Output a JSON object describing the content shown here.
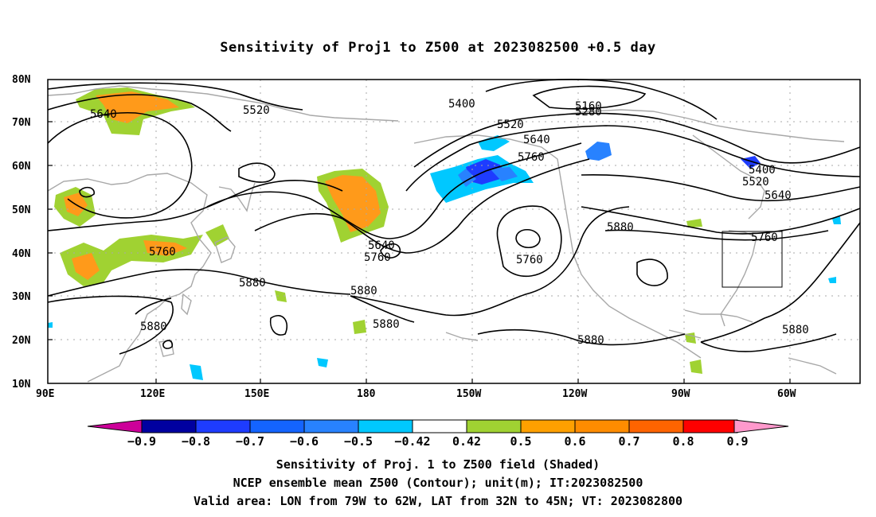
{
  "title": "Sensitivity of Proj1 to Z500 at 2023082500 +0.5 day",
  "lat_ticks": [
    "80N",
    "70N",
    "60N",
    "50N",
    "40N",
    "30N",
    "20N",
    "10N"
  ],
  "lon_ticks": [
    "90E",
    "120E",
    "150E",
    "180",
    "150W",
    "120W",
    "90W",
    "60W"
  ],
  "contour_labels": {
    "c5640_a": "5640",
    "c5520_a": "5520",
    "c5400": "5400",
    "c5160": "5160",
    "c5280": "5280",
    "c5520_b": "5520",
    "c5640_b": "5640",
    "c5760_a": "5760",
    "c5400_r": "5400",
    "c5520_r": "5520",
    "c5640_r": "5640",
    "c5880_a": "5880",
    "c5760_r": "5760",
    "c5760_b": "5760",
    "c5640_c": "5640",
    "c5760_c": "5760",
    "c5760_d": "5760",
    "c5880_b": "5880",
    "c5880_c": "5880",
    "c5880_d": "5880",
    "c5880_e": "5880",
    "c5880_f": "5880",
    "c5880_g": "5880"
  },
  "colorbar": {
    "labels": [
      "-0.9",
      "-0.8",
      "-0.7",
      "-0.6",
      "-0.5",
      "-0.42",
      "0.42",
      "0.5",
      "0.6",
      "0.7",
      "0.8",
      "0.9"
    ],
    "colors": [
      "#0000a0",
      "#1e3cff",
      "#1464ff",
      "#2882ff",
      "#00c8ff",
      "#ffffff",
      "#a0d232",
      "#ffa000",
      "#ff8c00",
      "#ff6400",
      "#ff0000"
    ],
    "low_color": "#cc0099",
    "high_color": "#ff99cc"
  },
  "footer": {
    "line1": "Sensitivity of Proj. 1 to Z500 field (Shaded)",
    "line2": "NCEP ensemble mean Z500 (Contour); unit(m); IT:2023082500",
    "line3": "Valid area: LON from 79W to 62W, LAT from 32N to 45N; VT: 2023082800"
  }
}
